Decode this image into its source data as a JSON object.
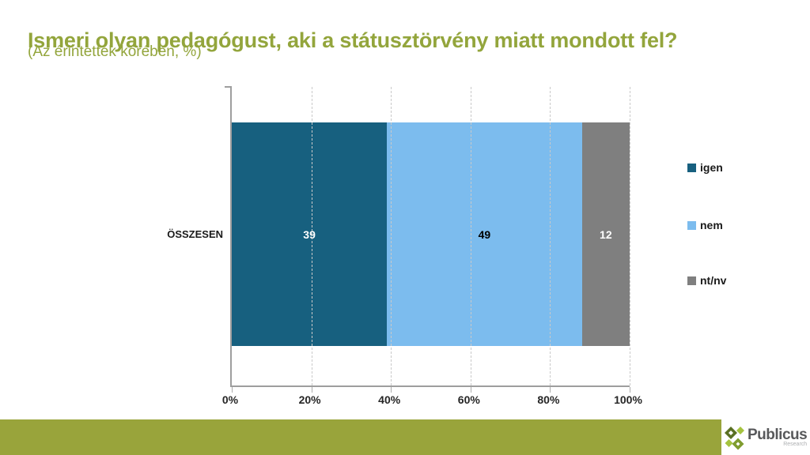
{
  "header": {
    "title": "Ismeri olyan pedagógust, aki a státusztörvény miatt mondott fel?",
    "subtitle": "(Az érintettek körében, %)"
  },
  "chart_data": {
    "type": "bar",
    "stacked": true,
    "orientation": "horizontal",
    "title": "Ismeri olyan pedagógust, aki a státusztörvény miatt mondott fel?",
    "subtitle": "(Az érintettek körében, %)",
    "categories": [
      "ÖSSZESEN"
    ],
    "series": [
      {
        "name": "igen",
        "values": [
          39
        ],
        "color": "#17607F",
        "label_color": "#FFFFFF"
      },
      {
        "name": "nem",
        "values": [
          49
        ],
        "color": "#7CBCEE",
        "label_color": "#000000"
      },
      {
        "name": "nt/nv",
        "values": [
          12
        ],
        "color": "#7F7F7F",
        "label_color": "#FFFFFF"
      }
    ],
    "x_ticks": [
      "0%",
      "20%",
      "40%",
      "60%",
      "80%",
      "100%"
    ],
    "xlim": [
      0,
      100
    ],
    "grid": "dashed-vertical",
    "legend_position": "right"
  },
  "footer": {
    "brand": "Publicus",
    "brand_sub": "Research"
  },
  "icons": {
    "logo": "publicus-diamonds-icon"
  },
  "colors": {
    "title": "#93A53C",
    "footer_bar": "#99A43B",
    "axis": "#9E9E9E",
    "gridline": "#C9C9C9"
  }
}
